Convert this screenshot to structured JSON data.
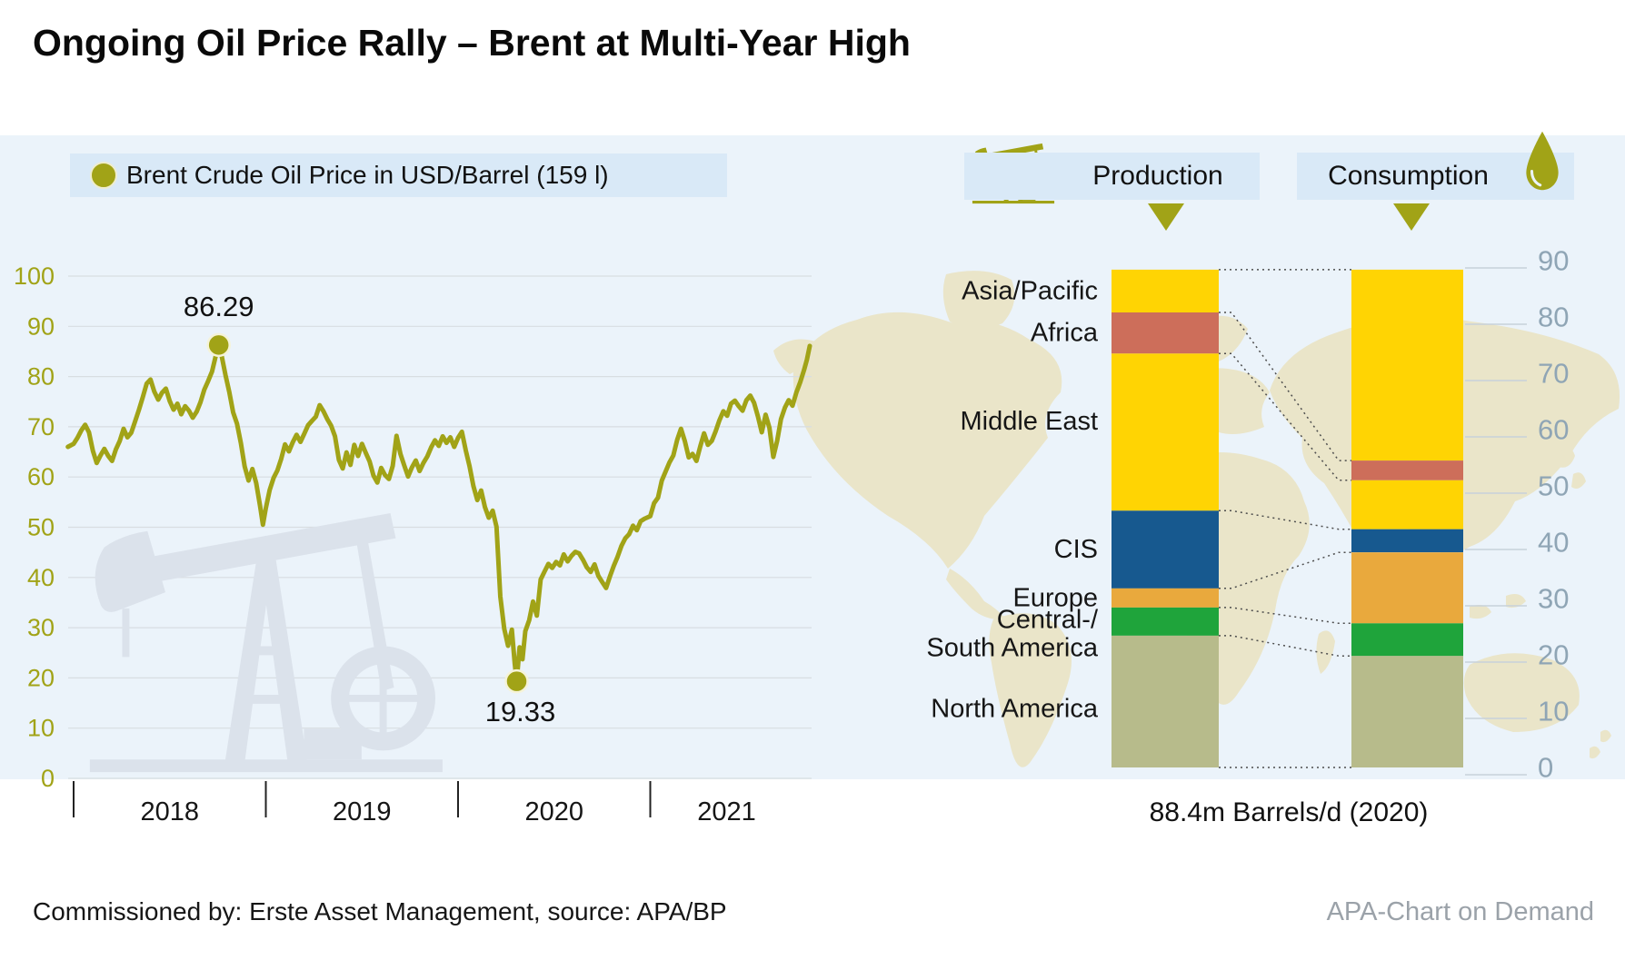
{
  "title": "Ongoing Oil Price Rally – Brent at Multi-Year High",
  "footer": {
    "source": "Commissioned by: Erste Asset Management, source: APA/BP",
    "brand": "APA-Chart on Demand"
  },
  "colors": {
    "olive": "#a1a317",
    "line": "#a1a317",
    "dot_ring": "#f5f3d8",
    "grid": "#d8dde1",
    "panel_bg": "#ebf3fa",
    "chip_bg": "#d9e9f7",
    "map": "#eae5c9",
    "watermark": "#dbe2eb",
    "connector": "#4d4d4d",
    "right_axis_text": "#8fa5b5",
    "right_grid": "#c7d1da",
    "text": "#161616",
    "brand_text": "#9ba2a9"
  },
  "icons": {
    "production": "pump-jack-icon",
    "consumption": "oil-drop-icon",
    "legend_marker": "olive-dot"
  },
  "chart_data": [
    {
      "type": "line",
      "title": "Brent Crude Oil Price in USD/Barrel (159 l)",
      "xlabel": "",
      "ylabel": "USD/Barrel",
      "ylim": [
        0,
        100
      ],
      "y_ticks": [
        0,
        10,
        20,
        30,
        40,
        50,
        60,
        70,
        80,
        90,
        100
      ],
      "grid": true,
      "x_unit": "years since 2018-01-01",
      "x_tick_labels": [
        "2018",
        "2019",
        "2020",
        "2021"
      ],
      "x_tick_positions_years": [
        0,
        1,
        2,
        3
      ],
      "annotations": [
        {
          "label": "86.29",
          "t": 0.755,
          "v": 86.29,
          "placement": "above"
        },
        {
          "label": "19.33",
          "t": 2.305,
          "v": 19.33,
          "placement": "below"
        }
      ],
      "series": [
        {
          "name": "Brent Crude Oil Price in USD/Barrel (159 l)",
          "points": [
            [
              -0.03,
              66.0
            ],
            [
              0.0,
              66.6
            ],
            [
              0.02,
              67.8
            ],
            [
              0.04,
              69.3
            ],
            [
              0.06,
              70.4
            ],
            [
              0.08,
              68.9
            ],
            [
              0.1,
              65.2
            ],
            [
              0.12,
              62.8
            ],
            [
              0.14,
              64.3
            ],
            [
              0.16,
              65.6
            ],
            [
              0.18,
              64.2
            ],
            [
              0.2,
              63.2
            ],
            [
              0.22,
              65.5
            ],
            [
              0.24,
              67.2
            ],
            [
              0.26,
              69.6
            ],
            [
              0.28,
              67.9
            ],
            [
              0.3,
              68.8
            ],
            [
              0.32,
              71.1
            ],
            [
              0.34,
              73.4
            ],
            [
              0.36,
              75.9
            ],
            [
              0.38,
              78.6
            ],
            [
              0.4,
              79.4
            ],
            [
              0.42,
              77.0
            ],
            [
              0.44,
              75.4
            ],
            [
              0.46,
              76.8
            ],
            [
              0.48,
              77.6
            ],
            [
              0.5,
              75.1
            ],
            [
              0.52,
              73.4
            ],
            [
              0.54,
              74.6
            ],
            [
              0.56,
              72.5
            ],
            [
              0.58,
              74.1
            ],
            [
              0.6,
              73.2
            ],
            [
              0.62,
              71.8
            ],
            [
              0.64,
              73.0
            ],
            [
              0.66,
              74.9
            ],
            [
              0.68,
              77.4
            ],
            [
              0.7,
              79.1
            ],
            [
              0.72,
              81.0
            ],
            [
              0.74,
              84.2
            ],
            [
              0.755,
              86.29
            ],
            [
              0.77,
              84.1
            ],
            [
              0.79,
              80.3
            ],
            [
              0.81,
              76.9
            ],
            [
              0.83,
              72.9
            ],
            [
              0.85,
              70.6
            ],
            [
              0.87,
              66.8
            ],
            [
              0.89,
              62.1
            ],
            [
              0.91,
              59.3
            ],
            [
              0.93,
              61.6
            ],
            [
              0.95,
              58.8
            ],
            [
              0.97,
              54.2
            ],
            [
              0.985,
              50.5
            ],
            [
              1.0,
              53.8
            ],
            [
              1.02,
              57.4
            ],
            [
              1.04,
              59.8
            ],
            [
              1.06,
              61.3
            ],
            [
              1.08,
              63.6
            ],
            [
              1.1,
              66.5
            ],
            [
              1.12,
              65.1
            ],
            [
              1.14,
              66.9
            ],
            [
              1.16,
              68.4
            ],
            [
              1.18,
              67.0
            ],
            [
              1.2,
              68.6
            ],
            [
              1.22,
              70.3
            ],
            [
              1.24,
              71.2
            ],
            [
              1.26,
              72.0
            ],
            [
              1.28,
              74.3
            ],
            [
              1.3,
              73.1
            ],
            [
              1.32,
              71.5
            ],
            [
              1.34,
              70.2
            ],
            [
              1.36,
              68.1
            ],
            [
              1.38,
              63.4
            ],
            [
              1.4,
              61.7
            ],
            [
              1.42,
              64.9
            ],
            [
              1.44,
              62.4
            ],
            [
              1.46,
              66.4
            ],
            [
              1.48,
              64.2
            ],
            [
              1.5,
              66.6
            ],
            [
              1.52,
              64.8
            ],
            [
              1.54,
              63.1
            ],
            [
              1.56,
              60.3
            ],
            [
              1.58,
              58.9
            ],
            [
              1.6,
              61.8
            ],
            [
              1.62,
              60.4
            ],
            [
              1.64,
              59.6
            ],
            [
              1.66,
              62.2
            ],
            [
              1.68,
              68.2
            ],
            [
              1.7,
              64.6
            ],
            [
              1.72,
              62.3
            ],
            [
              1.74,
              60.1
            ],
            [
              1.76,
              61.9
            ],
            [
              1.78,
              63.3
            ],
            [
              1.8,
              61.2
            ],
            [
              1.82,
              62.8
            ],
            [
              1.84,
              64.1
            ],
            [
              1.86,
              65.9
            ],
            [
              1.88,
              67.3
            ],
            [
              1.9,
              66.2
            ],
            [
              1.92,
              68.1
            ],
            [
              1.94,
              66.8
            ],
            [
              1.96,
              67.9
            ],
            [
              1.98,
              66.0
            ],
            [
              2.0,
              67.8
            ],
            [
              2.02,
              69.0
            ],
            [
              2.04,
              65.3
            ],
            [
              2.06,
              62.1
            ],
            [
              2.08,
              58.2
            ],
            [
              2.1,
              55.4
            ],
            [
              2.12,
              57.3
            ],
            [
              2.14,
              54.0
            ],
            [
              2.16,
              51.9
            ],
            [
              2.18,
              53.3
            ],
            [
              2.2,
              50.1
            ],
            [
              2.22,
              36.2
            ],
            [
              2.24,
              29.8
            ],
            [
              2.26,
              26.4
            ],
            [
              2.28,
              29.6
            ],
            [
              2.295,
              22.8
            ],
            [
              2.305,
              19.33
            ],
            [
              2.32,
              26.1
            ],
            [
              2.335,
              23.7
            ],
            [
              2.35,
              29.3
            ],
            [
              2.37,
              31.5
            ],
            [
              2.39,
              35.2
            ],
            [
              2.41,
              32.4
            ],
            [
              2.43,
              39.6
            ],
            [
              2.45,
              41.2
            ],
            [
              2.47,
              42.7
            ],
            [
              2.49,
              41.9
            ],
            [
              2.51,
              43.1
            ],
            [
              2.53,
              42.4
            ],
            [
              2.55,
              44.6
            ],
            [
              2.57,
              43.2
            ],
            [
              2.59,
              44.3
            ],
            [
              2.61,
              45.1
            ],
            [
              2.63,
              44.8
            ],
            [
              2.65,
              43.5
            ],
            [
              2.67,
              42.0
            ],
            [
              2.69,
              41.1
            ],
            [
              2.71,
              42.6
            ],
            [
              2.73,
              40.3
            ],
            [
              2.75,
              39.1
            ],
            [
              2.77,
              37.9
            ],
            [
              2.79,
              40.2
            ],
            [
              2.81,
              42.3
            ],
            [
              2.83,
              44.1
            ],
            [
              2.85,
              46.3
            ],
            [
              2.87,
              47.8
            ],
            [
              2.89,
              48.6
            ],
            [
              2.91,
              50.3
            ],
            [
              2.93,
              49.4
            ],
            [
              2.95,
              51.2
            ],
            [
              2.97,
              51.7
            ],
            [
              3.0,
              52.2
            ],
            [
              3.02,
              54.8
            ],
            [
              3.04,
              55.9
            ],
            [
              3.06,
              59.3
            ],
            [
              3.08,
              61.1
            ],
            [
              3.1,
              62.9
            ],
            [
              3.12,
              64.3
            ],
            [
              3.14,
              67.4
            ],
            [
              3.16,
              69.6
            ],
            [
              3.18,
              67.1
            ],
            [
              3.2,
              63.9
            ],
            [
              3.22,
              64.6
            ],
            [
              3.24,
              63.2
            ],
            [
              3.26,
              66.1
            ],
            [
              3.28,
              68.7
            ],
            [
              3.3,
              66.4
            ],
            [
              3.32,
              67.2
            ],
            [
              3.34,
              69.1
            ],
            [
              3.36,
              71.3
            ],
            [
              3.38,
              73.1
            ],
            [
              3.4,
              72.2
            ],
            [
              3.42,
              74.6
            ],
            [
              3.44,
              75.2
            ],
            [
              3.46,
              74.1
            ],
            [
              3.48,
              73.2
            ],
            [
              3.5,
              75.3
            ],
            [
              3.52,
              76.2
            ],
            [
              3.54,
              74.8
            ],
            [
              3.56,
              72.1
            ],
            [
              3.58,
              68.9
            ],
            [
              3.6,
              72.4
            ],
            [
              3.62,
              69.8
            ],
            [
              3.64,
              64.0
            ],
            [
              3.66,
              67.2
            ],
            [
              3.68,
              71.5
            ],
            [
              3.7,
              73.8
            ],
            [
              3.72,
              75.3
            ],
            [
              3.74,
              74.2
            ],
            [
              3.76,
              76.8
            ],
            [
              3.78,
              78.9
            ],
            [
              3.8,
              81.3
            ],
            [
              3.815,
              83.4
            ],
            [
              3.83,
              86.1
            ]
          ]
        }
      ]
    },
    {
      "type": "bar",
      "stacked": true,
      "title": "Oil production and consumption by region, 2020",
      "unit_note": "88.4m Barrels/d (2020)",
      "ylim": [
        0,
        90
      ],
      "y_ticks": [
        0,
        10,
        20,
        30,
        40,
        50,
        60,
        70,
        80,
        90
      ],
      "legend_position": "top",
      "categories": [
        "Asia/Pacific",
        "Africa",
        "Middle East",
        "CIS",
        "Europe",
        "Central-/South America",
        "North America"
      ],
      "segment_colors": [
        "#ffd403",
        "#cd6e5a",
        "#ffd403",
        "#17598f",
        "#e9a93d",
        "#1fa43b",
        "#b7bb8b"
      ],
      "series": [
        {
          "name": "Production",
          "values": [
            7.6,
            7.3,
            27.9,
            13.8,
            3.4,
            5.0,
            23.4
          ]
        },
        {
          "name": "Consumption",
          "values": [
            33.9,
            3.5,
            8.7,
            4.1,
            12.6,
            5.8,
            19.8
          ]
        }
      ]
    }
  ]
}
